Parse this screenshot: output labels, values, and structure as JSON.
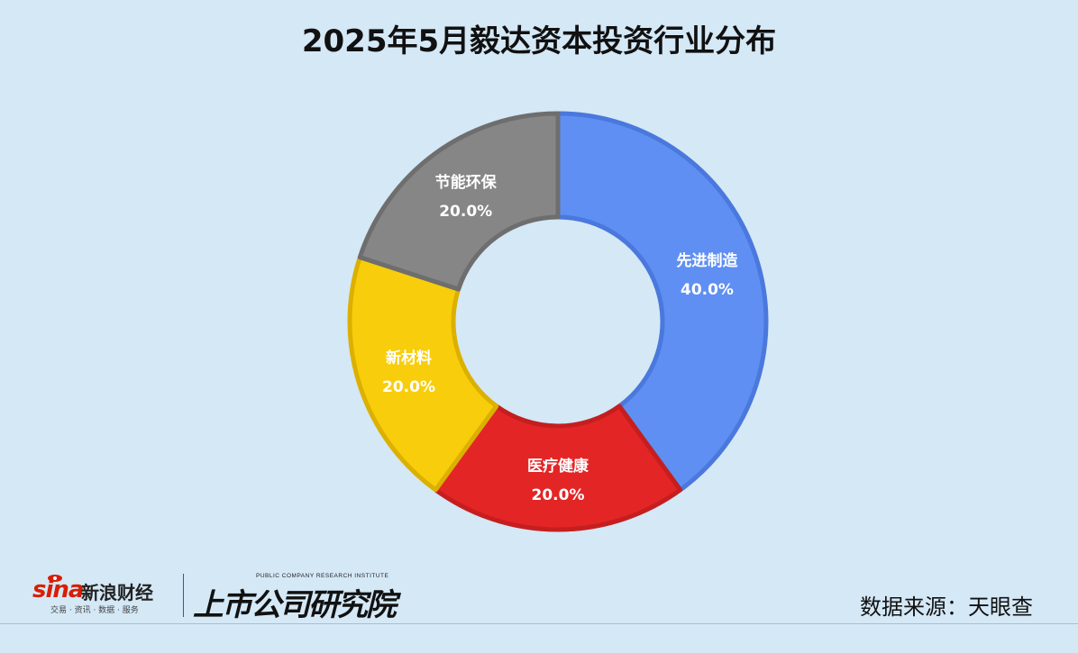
{
  "chart_data": {
    "type": "pie",
    "title": "2025年5月毅达资本投资行业分布",
    "segments": [
      {
        "label": "先进制造",
        "value": 40.0,
        "pct_label": "40.0%",
        "color": "#5f8ff2",
        "edge": "#4a78dd"
      },
      {
        "label": "医疗健康",
        "value": 20.0,
        "pct_label": "20.0%",
        "color": "#e32526",
        "edge": "#c51e1f"
      },
      {
        "label": "新材料",
        "value": 20.0,
        "pct_label": "20.0%",
        "color": "#f8cd0c",
        "edge": "#dcb000"
      },
      {
        "label": "节能环保",
        "value": 20.0,
        "pct_label": "20.0%",
        "color": "#868686",
        "edge": "#6e6e6e"
      }
    ],
    "legend": "none"
  },
  "footer": {
    "sina_brand": "sina",
    "sina_name": "新浪财经",
    "sina_tagline": "交易 · 资讯 · 数据 · 服务",
    "research_en": "PUBLIC COMPANY RESEARCH INSTITUTE",
    "research_cn": "上市公司研究院",
    "source": "数据来源：天眼查"
  }
}
